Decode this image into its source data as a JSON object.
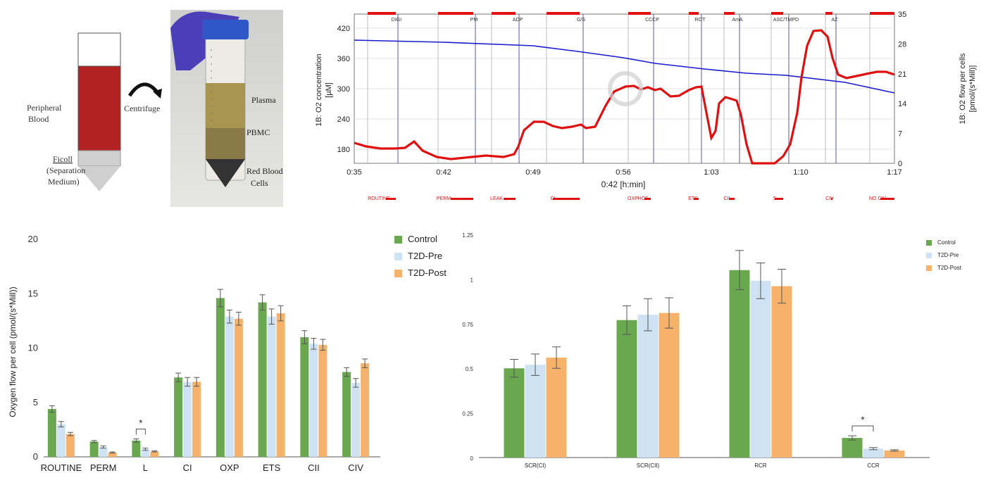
{
  "diagram": {
    "tube_labels": [
      "Peripheral",
      "Blood"
    ],
    "ficoll_labels": [
      "Ficoll",
      "(Separation",
      "Medium)"
    ],
    "centrifuge_label": "Centrifuge",
    "photo_labels": {
      "plasma": "Plasma",
      "pbmc": "PBMC",
      "rbc": [
        "Red Blood",
        "Cells"
      ]
    }
  },
  "trace": {
    "ylabel_left": [
      "1B: O2 concentration",
      "[µM]"
    ],
    "ylabel_right": [
      "1B: O2 flow per cells",
      "[pmol/(s*Mill)]"
    ],
    "xlabel": "0:42 [h:min]",
    "left_ticks": [
      420,
      360,
      300,
      240,
      180
    ],
    "right_ticks": [
      35,
      28,
      21,
      14,
      7,
      0
    ],
    "x_ticks": [
      "0:35",
      "0:42",
      "0:49",
      "0:56",
      "1:03",
      "1:10",
      "1:17"
    ],
    "injections": [
      "DIGI",
      "PM",
      "ADP",
      "G/S",
      "CCCP",
      "ROT",
      "AmA",
      "ASC/TMPD",
      "AZ"
    ],
    "states": [
      "ROUTINE",
      "PERM",
      "LEAK",
      "CI",
      "OXPHOS",
      "ETS",
      "CII",
      "S",
      "CIV",
      "NO CIV"
    ],
    "colors": {
      "o2_concentration": "#1a1ad0",
      "o2_flow": "#e01010",
      "event": "#e01010"
    }
  },
  "chart_data": [
    {
      "type": "bar",
      "title": "",
      "xlabel": "",
      "ylabel": "Oxygen flow per cell (pmol/(s*Mill))",
      "ylim": [
        0,
        20
      ],
      "yticks": [
        0,
        5,
        10,
        15,
        20
      ],
      "categories": [
        "ROUTINE",
        "PERM",
        "L",
        "CI",
        "OXP",
        "ETS",
        "CII",
        "CIV"
      ],
      "series": [
        {
          "name": "Control",
          "color": "#6aa84f",
          "values": [
            4.4,
            1.4,
            1.5,
            7.3,
            14.6,
            14.2,
            11.0,
            7.8
          ],
          "errors": [
            0.3,
            0.1,
            0.15,
            0.4,
            0.8,
            0.7,
            0.6,
            0.4
          ]
        },
        {
          "name": "T2D-Pre",
          "color": "#cfe2f3",
          "values": [
            3.0,
            0.9,
            0.7,
            6.9,
            12.9,
            12.9,
            10.4,
            6.8
          ],
          "errors": [
            0.25,
            0.1,
            0.1,
            0.4,
            0.6,
            0.7,
            0.5,
            0.4
          ]
        },
        {
          "name": "T2D-Post",
          "color": "#f6b26b",
          "values": [
            2.1,
            0.4,
            0.5,
            6.9,
            12.7,
            13.2,
            10.3,
            8.6
          ],
          "errors": [
            0.15,
            0.05,
            0.05,
            0.4,
            0.6,
            0.7,
            0.5,
            0.4
          ]
        }
      ],
      "annotations": [
        {
          "category": "L",
          "text": "*"
        }
      ],
      "legend": "top-right"
    },
    {
      "type": "bar",
      "title": "",
      "xlabel": "",
      "ylabel": "",
      "ylim": [
        0,
        1.25
      ],
      "yticks": [
        "0",
        "0.25",
        "0.5",
        "0.75",
        "1",
        "1.25"
      ],
      "categories": [
        "SCR(CI)",
        "SCR(CII)",
        "RCR",
        "CCR"
      ],
      "series": [
        {
          "name": "Control",
          "color": "#6aa84f",
          "values": [
            0.5,
            0.77,
            1.05,
            0.11
          ],
          "errors": [
            0.05,
            0.08,
            0.11,
            0.012
          ]
        },
        {
          "name": "T2D-Pre",
          "color": "#cfe2f3",
          "values": [
            0.52,
            0.8,
            0.99,
            0.05
          ],
          "errors": [
            0.06,
            0.09,
            0.1,
            0.006
          ]
        },
        {
          "name": "T2D-Post",
          "color": "#f6b26b",
          "values": [
            0.56,
            0.81,
            0.96,
            0.04
          ],
          "errors": [
            0.06,
            0.085,
            0.095,
            0.004
          ]
        }
      ],
      "annotations": [
        {
          "category": "CCR",
          "text": "*"
        }
      ],
      "legend": "top-right"
    }
  ]
}
